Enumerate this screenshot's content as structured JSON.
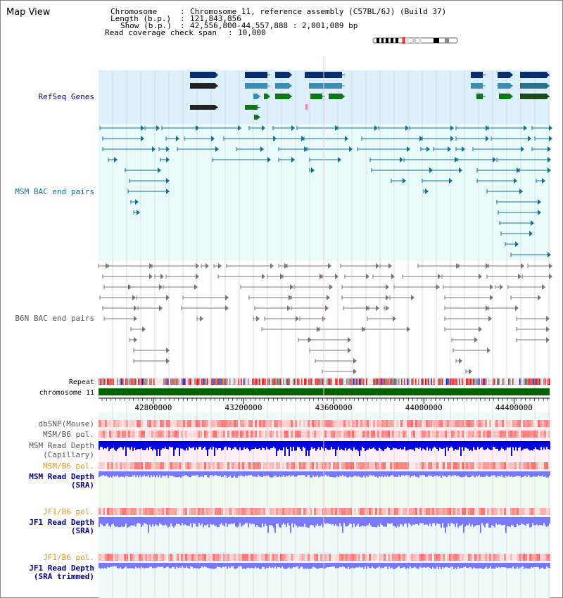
{
  "header": {
    "title": "Map View",
    "chromosome_label": "Chromosome",
    "chromosome_value": "Chromosome 11, reference assembly (C57BL/6J) (Build 37)",
    "length_label": "Length (b.p.)",
    "length_value": "121,843,856",
    "show_label": "Show (b.p.)",
    "show_value": "42,556,800-44,557,888 : 2,001,089 bp",
    "coverage_label": "Read coverage check span",
    "coverage_value": "10,000"
  },
  "tracks": {
    "refseq": "RefSeq Genes",
    "msm_bac": "MSM BAC end pairs",
    "b6n_bac": "B6N BAC end pairs",
    "repeat": "Repeat",
    "chromosome": "chromosome 11",
    "dbsnp": "dbSNP(Mouse)",
    "msm_pol": "MSM/B6 pol.",
    "msm_depth_cap_1": "MSM Read Depth",
    "msm_depth_cap_2": "(Capillary)",
    "msm_pol2": "MSM/B6 pol.",
    "msm_depth_sra_1": "MSM Read Depth",
    "msm_depth_sra_2": "(SRA)",
    "jf1_pol": "JF1/B6 pol.",
    "jf1_depth_sra_1": "JF1 Read Depth",
    "jf1_depth_sra_2": "(SRA)",
    "jf1_pol2": "JF1/B6 pol.",
    "jf1_depth_trim_1": "JF1 Read Depth",
    "jf1_depth_trim_2": "(SRA trimmed)"
  },
  "axis": {
    "ticks": [
      "42800000",
      "43200000",
      "43600000",
      "44000000",
      "44400000"
    ],
    "tick_values": [
      42800000,
      43200000,
      43600000,
      44000000,
      44400000
    ],
    "range_start": 42556800,
    "range_end": 44557888
  },
  "colors": {
    "refseq_bg": "#dcf0fa",
    "bac_bg": "#e8fafa",
    "msm_bac": "#1a6e90",
    "b6n_bac": "#777777",
    "refseq_dark": "#0a2d6e",
    "refseq_mid": "#3c8cb4",
    "refseq_green": "#0a7814",
    "chrom_green": "#006400",
    "label_navy": "#00008b",
    "label_teal": "#1a6e90",
    "label_gray": "#555555",
    "label_orange": "#e69614",
    "depth_blue": "#0000e6",
    "depth_light": "#7878ff"
  }
}
